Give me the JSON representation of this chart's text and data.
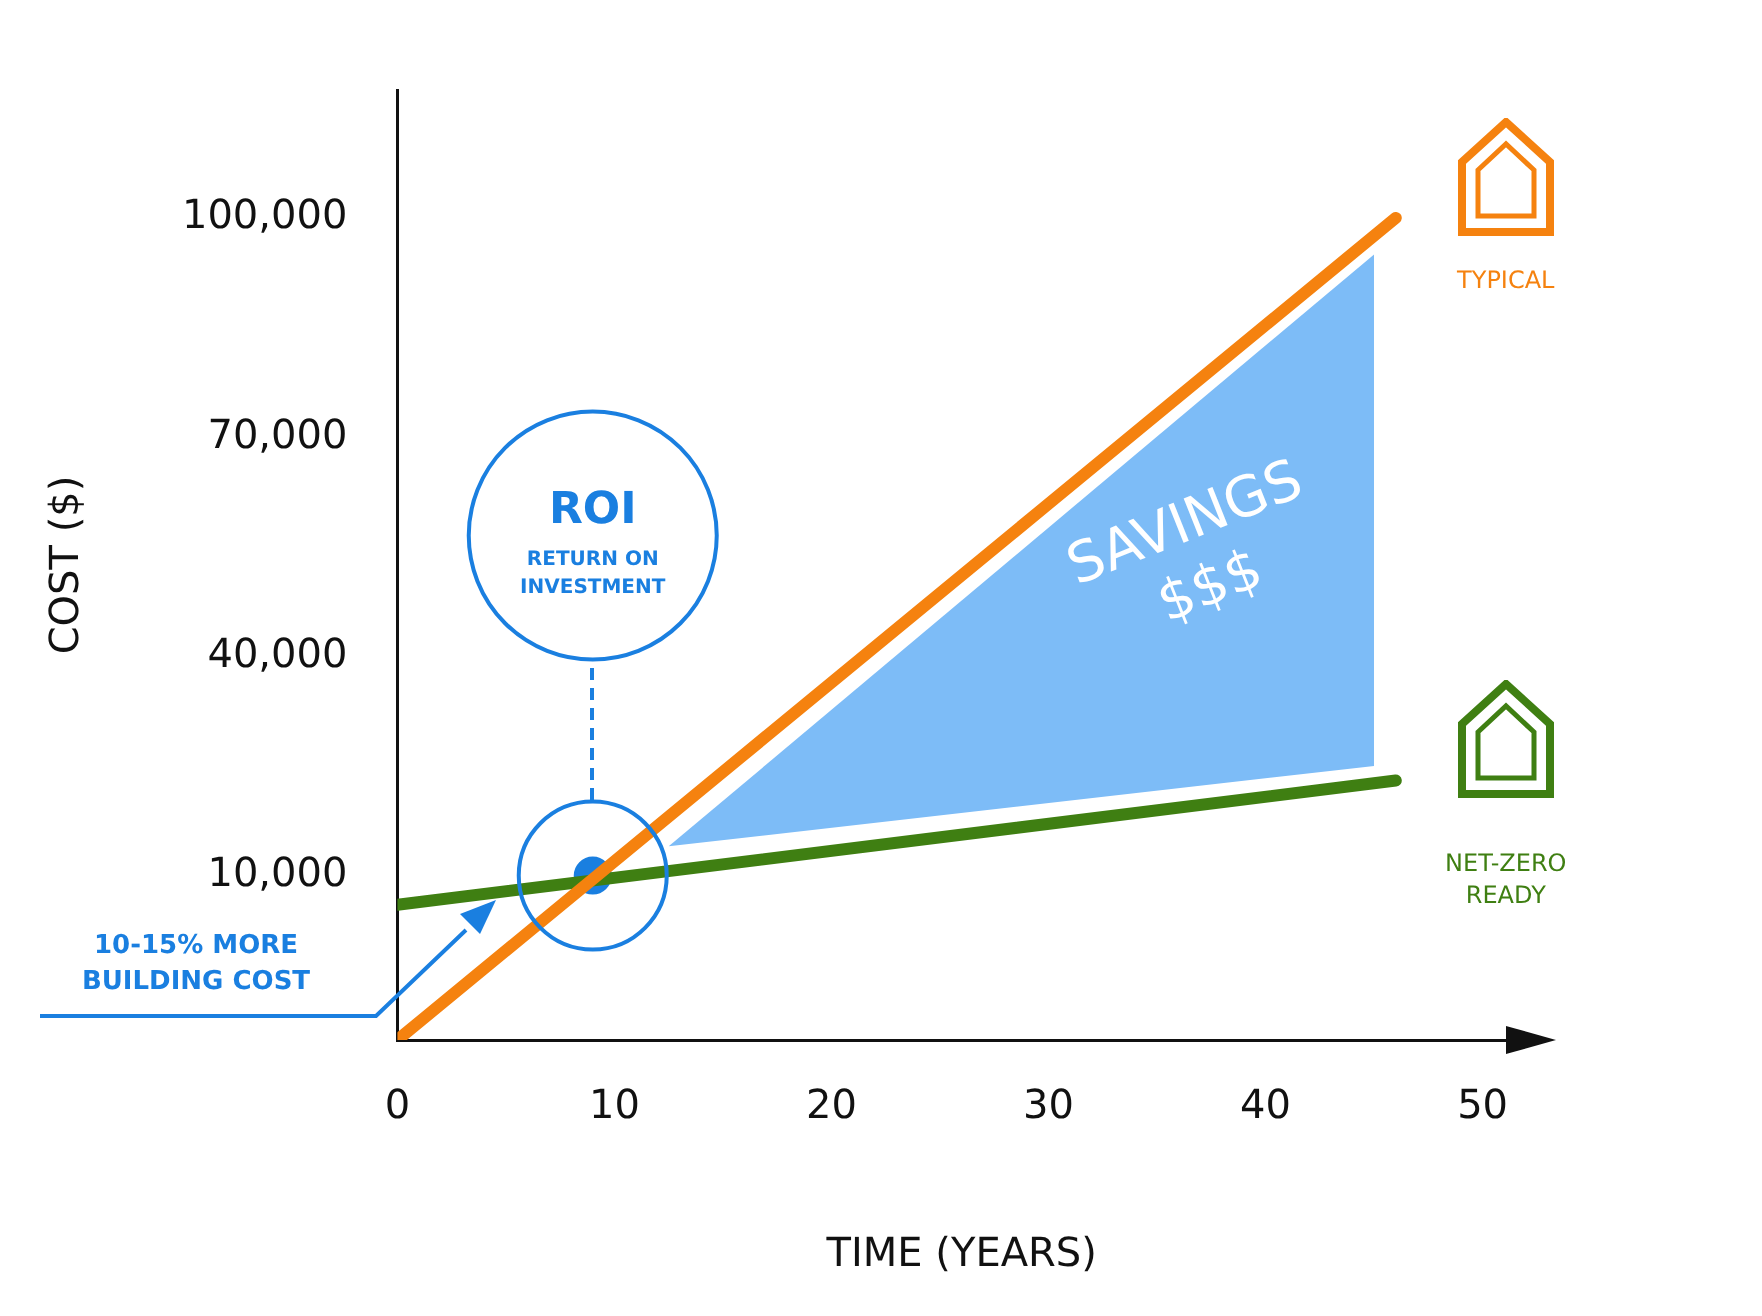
{
  "chart_data": {
    "type": "line",
    "xlabel": "TIME (YEARS)",
    "ylabel": "COST ($)",
    "xlim": [
      0,
      52
    ],
    "xticks": [
      0,
      10,
      20,
      30,
      40,
      50
    ],
    "ylim": [
      -12500,
      117500
    ],
    "yticks": [
      {
        "value": 10000,
        "label": "10,000"
      },
      {
        "value": 40000,
        "label": "40,000"
      },
      {
        "value": 70000,
        "label": "70,000"
      },
      {
        "value": 100000,
        "label": "100,000"
      }
    ],
    "grid": false,
    "legend": false,
    "marker": "none",
    "line_style": "solid",
    "series": [
      {
        "name": "TYPICAL",
        "type": "line",
        "color": "#f5820f",
        "x": [
          0,
          46
        ],
        "values": [
          -12500,
          100000
        ]
      },
      {
        "name": "NET-ZERO READY",
        "type": "line",
        "color": "#3f7f12",
        "x": [
          0,
          46
        ],
        "values": [
          6000,
          23000
        ]
      },
      {
        "type": "line",
        "color": "#7dbcf7",
        "x": [
          12.5,
          45
        ],
        "values": [
          null,
          null
        ],
        "lower": [
          14000,
          25000
        ],
        "upper": [
          14000,
          95000
        ]
      },
      {
        "type": "scatter",
        "color": "#1a7fe0",
        "marker": "circle",
        "x": [
          9
        ],
        "values": [
          10000
        ]
      }
    ],
    "annotations": [
      "ROI",
      "RETURN ON INVESTMENT",
      "SAVINGS $$$",
      "10-15% MORE BUILDING COST"
    ]
  }
}
